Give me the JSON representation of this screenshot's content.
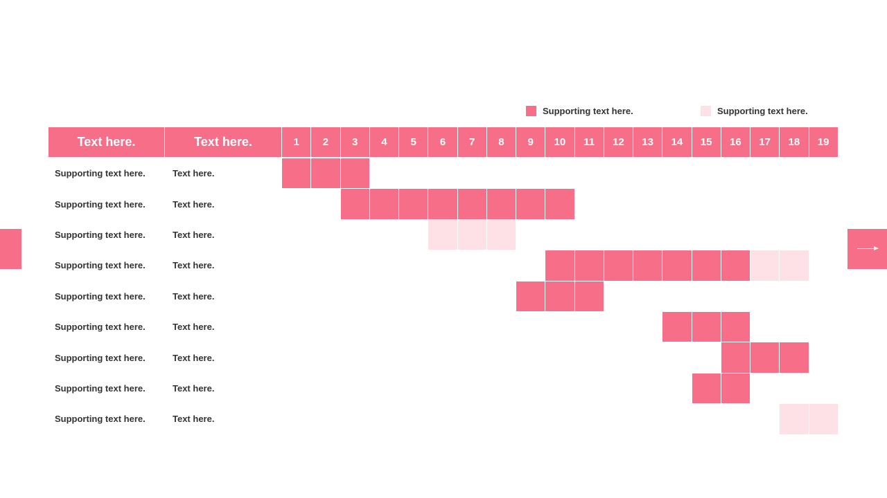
{
  "legend": [
    {
      "label": "Supporting text here.",
      "color": "#f76e89"
    },
    {
      "label": "Supporting text here.",
      "color": "#fde1e6"
    }
  ],
  "colors": {
    "accent": "#f76e89",
    "light": "#fde1e6"
  },
  "header": {
    "col1": "Text here.",
    "col2": "Text here.",
    "days": [
      "1",
      "2",
      "3",
      "4",
      "5",
      "6",
      "7",
      "8",
      "9",
      "10",
      "11",
      "12",
      "13",
      "14",
      "15",
      "16",
      "17",
      "18",
      "19"
    ]
  },
  "rows": [
    {
      "label": "Supporting text here.",
      "sublabel": "Text here.",
      "bars": [
        {
          "start": 1,
          "end": 3,
          "type": "primary"
        }
      ]
    },
    {
      "label": "Supporting text here.",
      "sublabel": "Text here.",
      "bars": [
        {
          "start": 3,
          "end": 10,
          "type": "primary"
        }
      ]
    },
    {
      "label": "Supporting text here.",
      "sublabel": "Text here.",
      "bars": [
        {
          "start": 6,
          "end": 8,
          "type": "secondary"
        }
      ]
    },
    {
      "label": "Supporting text here.",
      "sublabel": "Text here.",
      "bars": [
        {
          "start": 10,
          "end": 16,
          "type": "primary"
        },
        {
          "start": 17,
          "end": 18,
          "type": "secondary"
        }
      ]
    },
    {
      "label": "Supporting text here.",
      "sublabel": "Text here.",
      "bars": [
        {
          "start": 9,
          "end": 11,
          "type": "primary"
        }
      ]
    },
    {
      "label": "Supporting text here.",
      "sublabel": "Text here.",
      "bars": [
        {
          "start": 14,
          "end": 16,
          "type": "primary"
        }
      ]
    },
    {
      "label": "Supporting text here.",
      "sublabel": "Text here.",
      "bars": [
        {
          "start": 16,
          "end": 18,
          "type": "primary"
        }
      ]
    },
    {
      "label": "Supporting text here.",
      "sublabel": "Text here.",
      "bars": [
        {
          "start": 15,
          "end": 16,
          "type": "primary"
        }
      ]
    },
    {
      "label": "Supporting text here.",
      "sublabel": "Text here.",
      "bars": [
        {
          "start": 18,
          "end": 19,
          "type": "secondary"
        }
      ]
    }
  ]
}
